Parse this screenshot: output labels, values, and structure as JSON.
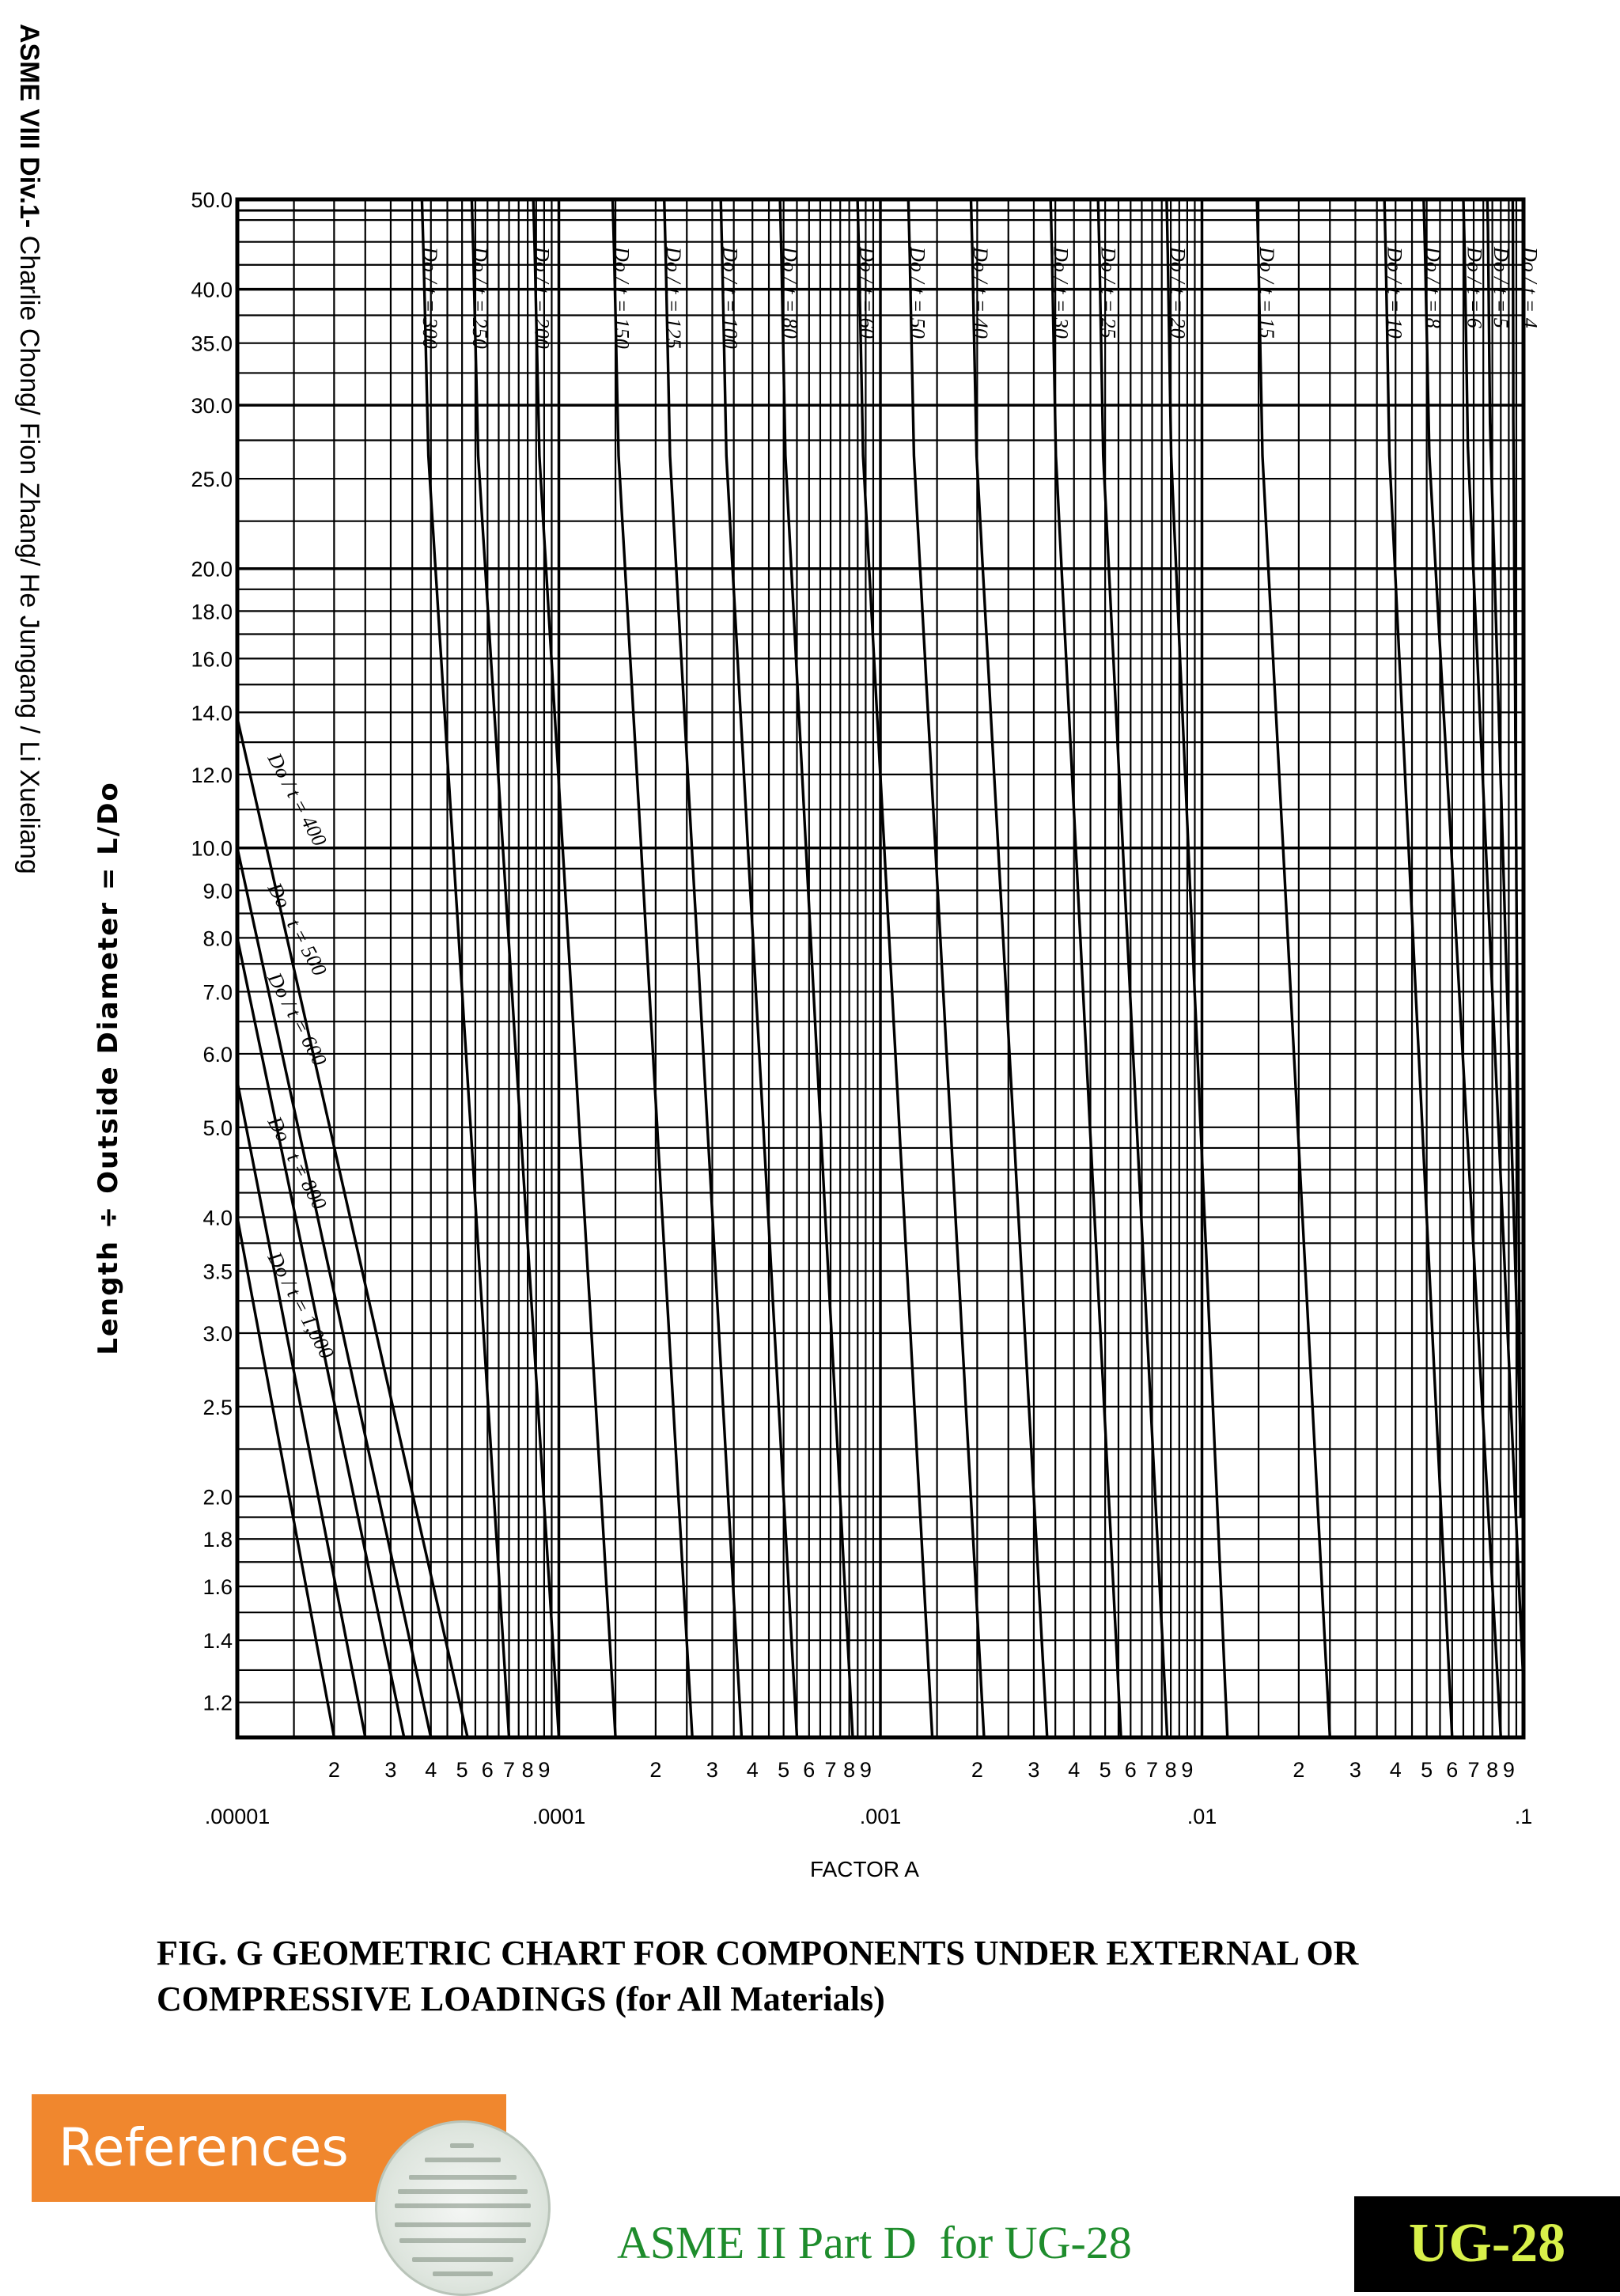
{
  "side_credit": {
    "bold": "ASME VIII Div.1-",
    "normal": " Charlie Chong/ Fion Zhang/ He Jungang / Li Xueliang"
  },
  "chart_data": {
    "type": "line",
    "title": "FIG. G GEOMETRIC CHART FOR COMPONENTS UNDER EXTERNAL OR COMPRESSIVE LOADINGS (for All Materials)",
    "xlabel": "FACTOR A",
    "ylabel": "Length ÷ Outside Diameter = L/Do",
    "x_scale": "log",
    "y_scale": "log",
    "xlim": [
      1e-05,
      0.1
    ],
    "ylim": [
      1.1,
      50
    ],
    "grid": true,
    "x_tick_labels": [
      {
        "x": 1e-05,
        "label": ".00001"
      },
      {
        "x": 0.0001,
        "label": ".0001"
      },
      {
        "x": 0.001,
        "label": ".001"
      },
      {
        "x": 0.01,
        "label": ".01"
      },
      {
        "x": 0.1,
        "label": ".1"
      }
    ],
    "x_minor_labels": [
      "2",
      "3",
      "4",
      "5",
      "6",
      "7",
      "8",
      "9"
    ],
    "y_ticks": [
      {
        "y": 50,
        "label": "50.0"
      },
      {
        "y": 40,
        "label": "40.0"
      },
      {
        "y": 35,
        "label": "35.0"
      },
      {
        "y": 30,
        "label": "30.0"
      },
      {
        "y": 25,
        "label": "25.0"
      },
      {
        "y": 20,
        "label": "20.0"
      },
      {
        "y": 18,
        "label": "18.0"
      },
      {
        "y": 16,
        "label": "16.0"
      },
      {
        "y": 14,
        "label": "14.0"
      },
      {
        "y": 12,
        "label": "12.0"
      },
      {
        "y": 10,
        "label": "10.0"
      },
      {
        "y": 9,
        "label": "9.0"
      },
      {
        "y": 8,
        "label": "8.0"
      },
      {
        "y": 7,
        "label": "7.0"
      },
      {
        "y": 6,
        "label": "6.0"
      },
      {
        "y": 5,
        "label": "5.0"
      },
      {
        "y": 4,
        "label": "4.0"
      },
      {
        "y": 3.5,
        "label": "3.5"
      },
      {
        "y": 3,
        "label": "3.0"
      },
      {
        "y": 2.5,
        "label": "2.5"
      },
      {
        "y": 2,
        "label": "2.0"
      },
      {
        "y": 1.8,
        "label": "1.8"
      },
      {
        "y": 1.6,
        "label": "1.6"
      },
      {
        "y": 1.4,
        "label": "1.4"
      },
      {
        "y": 1.2,
        "label": "1.2"
      }
    ],
    "series": [
      {
        "name": "Do / t = 4",
        "plateau_A": 0.092,
        "points": [
          [
            0.1,
            1.8
          ],
          [
            0.098,
            1.9
          ]
        ]
      },
      {
        "name": "Do / t = 5",
        "plateau_A": 0.075,
        "points": [
          [
            0.1,
            1.8
          ]
        ]
      },
      {
        "name": "Do / t = 6",
        "plateau_A": 0.062,
        "points": [
          [
            0.092,
            1.2
          ],
          [
            0.1,
            1.25
          ]
        ]
      },
      {
        "name": "Do / t = 8",
        "plateau_A": 0.046,
        "points": [
          [
            0.085,
            1.1
          ]
        ]
      },
      {
        "name": "Do / t = 10",
        "plateau_A": 0.035,
        "points": [
          [
            0.06,
            1.1
          ]
        ]
      },
      {
        "name": "Do / t = 15",
        "plateau_A": 0.014,
        "points": [
          [
            0.025,
            1.1
          ]
        ]
      },
      {
        "name": "Do / t = 20",
        "plateau_A": 0.0074,
        "points": [
          [
            0.012,
            1.1
          ]
        ]
      },
      {
        "name": "Do / t = 25",
        "plateau_A": 0.0045,
        "points": [
          [
            0.0078,
            1.1
          ]
        ]
      },
      {
        "name": "Do / t = 30",
        "plateau_A": 0.0032,
        "points": [
          [
            0.0056,
            1.1
          ]
        ]
      },
      {
        "name": "Do / t = 40",
        "plateau_A": 0.0018,
        "points": [
          [
            0.0033,
            1.1
          ]
        ]
      },
      {
        "name": "Do / t = 50",
        "plateau_A": 0.00115,
        "points": [
          [
            0.0021,
            1.1
          ]
        ]
      },
      {
        "name": "Do / t = 60",
        "plateau_A": 0.0008,
        "points": [
          [
            0.00145,
            1.1
          ]
        ]
      },
      {
        "name": "Do / t = 80",
        "plateau_A": 0.00046,
        "points": [
          [
            0.00082,
            1.1
          ]
        ]
      },
      {
        "name": "Do / t = 100",
        "plateau_A": 0.0003,
        "points": [
          [
            0.00055,
            1.1
          ]
        ]
      },
      {
        "name": "Do / t = 125",
        "plateau_A": 0.0002,
        "points": [
          [
            0.00037,
            1.1
          ]
        ]
      },
      {
        "name": "Do / t = 150",
        "plateau_A": 0.000138,
        "points": [
          [
            0.00026,
            1.1
          ]
        ]
      },
      {
        "name": "Do / t = 200",
        "plateau_A": 7.8e-05,
        "points": [
          [
            0.00015,
            1.1
          ]
        ]
      },
      {
        "name": "Do / t = 250",
        "plateau_A": 5e-05,
        "points": [
          [
            0.0001,
            1.1
          ]
        ]
      },
      {
        "name": "Do / t = 300",
        "plateau_A": 3.5e-05,
        "points": [
          [
            7e-05,
            1.1
          ]
        ]
      },
      {
        "name": "Do / t = 400",
        "plateau_A": null,
        "points": [
          [
            1e-05,
            13.8
          ],
          [
            5.2e-05,
            1.1
          ]
        ]
      },
      {
        "name": "Do / t = 500",
        "plateau_A": null,
        "points": [
          [
            1e-05,
            10.0
          ],
          [
            4e-05,
            1.1
          ]
        ]
      },
      {
        "name": "Do / t = 600",
        "plateau_A": null,
        "points": [
          [
            1e-05,
            8.0
          ],
          [
            3.3e-05,
            1.1
          ]
        ]
      },
      {
        "name": "Do / t = 800",
        "plateau_A": null,
        "points": [
          [
            1e-05,
            5.6
          ],
          [
            2.5e-05,
            1.1
          ]
        ]
      },
      {
        "name": "Do / t = 1,000",
        "plateau_A": null,
        "points": [
          [
            1e-05,
            4.0
          ],
          [
            2e-05,
            1.1
          ]
        ]
      }
    ]
  },
  "references": {
    "label": "References",
    "seal_icon": "document-seal-icon",
    "banner_color": "#f0872e"
  },
  "source": {
    "text": "ASME II Part D  for UG-28",
    "color": "#1e8c2c"
  },
  "code_badge": {
    "text": "UG-28",
    "color": "#d8f04a"
  }
}
